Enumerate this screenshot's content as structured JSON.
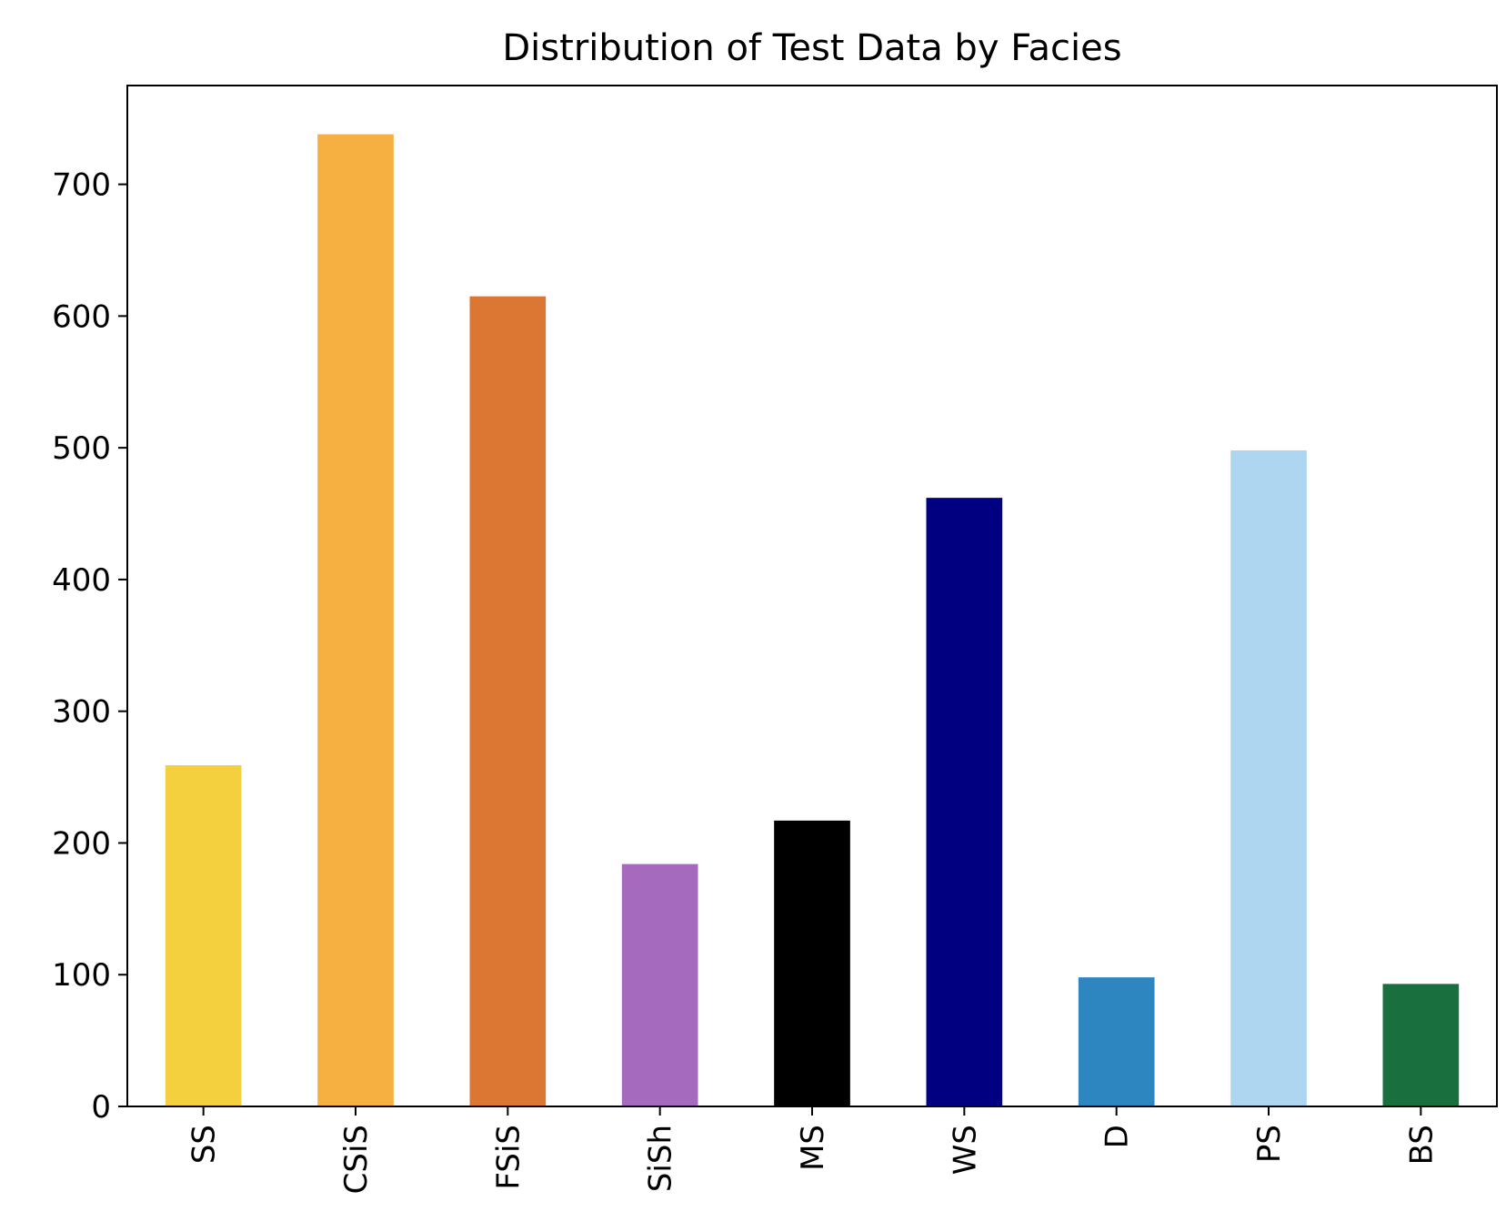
{
  "chart_data": {
    "type": "bar",
    "title": "Distribution of Test Data by Facies",
    "xlabel": "",
    "ylabel": "",
    "categories": [
      "SS",
      "CSiS",
      "FSiS",
      "SiSh",
      "MS",
      "WS",
      "D",
      "PS",
      "BS"
    ],
    "values": [
      259,
      738,
      615,
      184,
      217,
      462,
      98,
      498,
      93
    ],
    "colors": [
      "#F4D03F",
      "#F5B041",
      "#DC7633",
      "#A569BD",
      "#000000",
      "#000080",
      "#2E86C1",
      "#AED6F1",
      "#196F3D"
    ],
    "ylim": [
      0,
      775
    ],
    "yticks": [
      0,
      100,
      200,
      300,
      400,
      500,
      600,
      700
    ],
    "grid": false,
    "legend": "none",
    "x_tick_rotation": 90
  }
}
